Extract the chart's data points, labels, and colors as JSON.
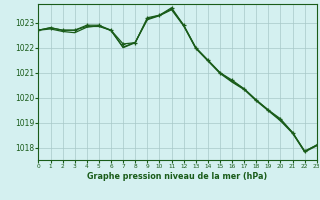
{
  "title": "Graphe pression niveau de la mer (hPa)",
  "background_color": "#d4f0f0",
  "grid_color": "#a8c8c8",
  "line_color": "#1a5c1a",
  "xlim": [
    0,
    23
  ],
  "ylim": [
    1017.5,
    1023.75
  ],
  "yticks": [
    1018,
    1019,
    1020,
    1021,
    1022,
    1023
  ],
  "xticks": [
    0,
    1,
    2,
    3,
    4,
    5,
    6,
    7,
    8,
    9,
    10,
    11,
    12,
    13,
    14,
    15,
    16,
    17,
    18,
    19,
    20,
    21,
    22,
    23
  ],
  "s1_y": [
    1022.7,
    1022.75,
    1022.65,
    1022.6,
    1022.82,
    1022.88,
    1022.68,
    1022.02,
    1022.22,
    1023.12,
    1023.28,
    1023.52,
    1022.87,
    1021.97,
    1021.47,
    1020.97,
    1020.62,
    1020.32,
    1019.87,
    1019.47,
    1019.07,
    1018.57,
    1017.82,
    1018.07
  ],
  "s2_y": [
    1022.7,
    1022.8,
    1022.7,
    1022.7,
    1022.85,
    1022.85,
    1022.7,
    1022.0,
    1022.2,
    1023.15,
    1023.3,
    1023.55,
    1022.9,
    1022.0,
    1021.5,
    1021.0,
    1020.65,
    1020.35,
    1019.9,
    1019.5,
    1019.1,
    1018.6,
    1017.85,
    1018.1
  ],
  "s3_y": [
    1022.7,
    1022.8,
    1022.7,
    1022.7,
    1022.9,
    1022.9,
    1022.7,
    1022.15,
    1022.2,
    1023.2,
    1023.3,
    1023.6,
    1022.9,
    1022.0,
    1021.5,
    1021.0,
    1020.7,
    1020.35,
    1019.9,
    1019.5,
    1019.15,
    1018.6,
    1017.85,
    1018.1
  ]
}
